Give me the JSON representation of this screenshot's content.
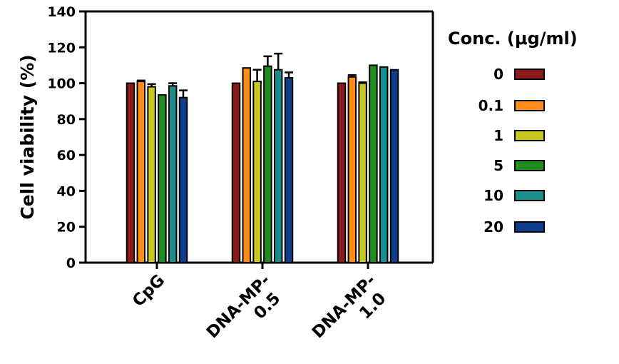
{
  "chart_data": {
    "type": "bar",
    "title": "",
    "xlabel": "",
    "ylabel": "Cell viability (%)",
    "ylim": [
      0,
      140
    ],
    "yticks": [
      "0",
      "20",
      "40",
      "60",
      "80",
      "100",
      "120",
      "140"
    ],
    "categories": [
      [
        "CpG"
      ],
      [
        "DNA-MP-",
        "0.5"
      ],
      [
        "DNA-MP-",
        "1.0"
      ]
    ],
    "legend": {
      "title": "Conc. (μg/ml)",
      "placement": "right"
    },
    "series": [
      {
        "name": "0",
        "color": "#8b1a1a",
        "values": [
          100,
          100,
          100
        ],
        "errors": [
          0,
          0,
          0
        ]
      },
      {
        "name": "0.1",
        "color": "#ff8c1a",
        "values": [
          101,
          108.5,
          103.5
        ],
        "errors": [
          0.5,
          0,
          1
        ]
      },
      {
        "name": "1",
        "color": "#c8c81e",
        "values": [
          98,
          101,
          100
        ],
        "errors": [
          1.5,
          6.5,
          0.5
        ]
      },
      {
        "name": "5",
        "color": "#1e8c1e",
        "values": [
          93.5,
          109.5,
          110
        ],
        "errors": [
          0,
          5.5,
          0
        ]
      },
      {
        "name": "10",
        "color": "#1a8c8c",
        "values": [
          98.5,
          107.5,
          109
        ],
        "errors": [
          1.5,
          9,
          0
        ]
      },
      {
        "name": "20",
        "color": "#0f3c8c",
        "values": [
          92,
          103,
          107.5
        ],
        "errors": [
          4,
          3,
          0
        ]
      }
    ]
  }
}
